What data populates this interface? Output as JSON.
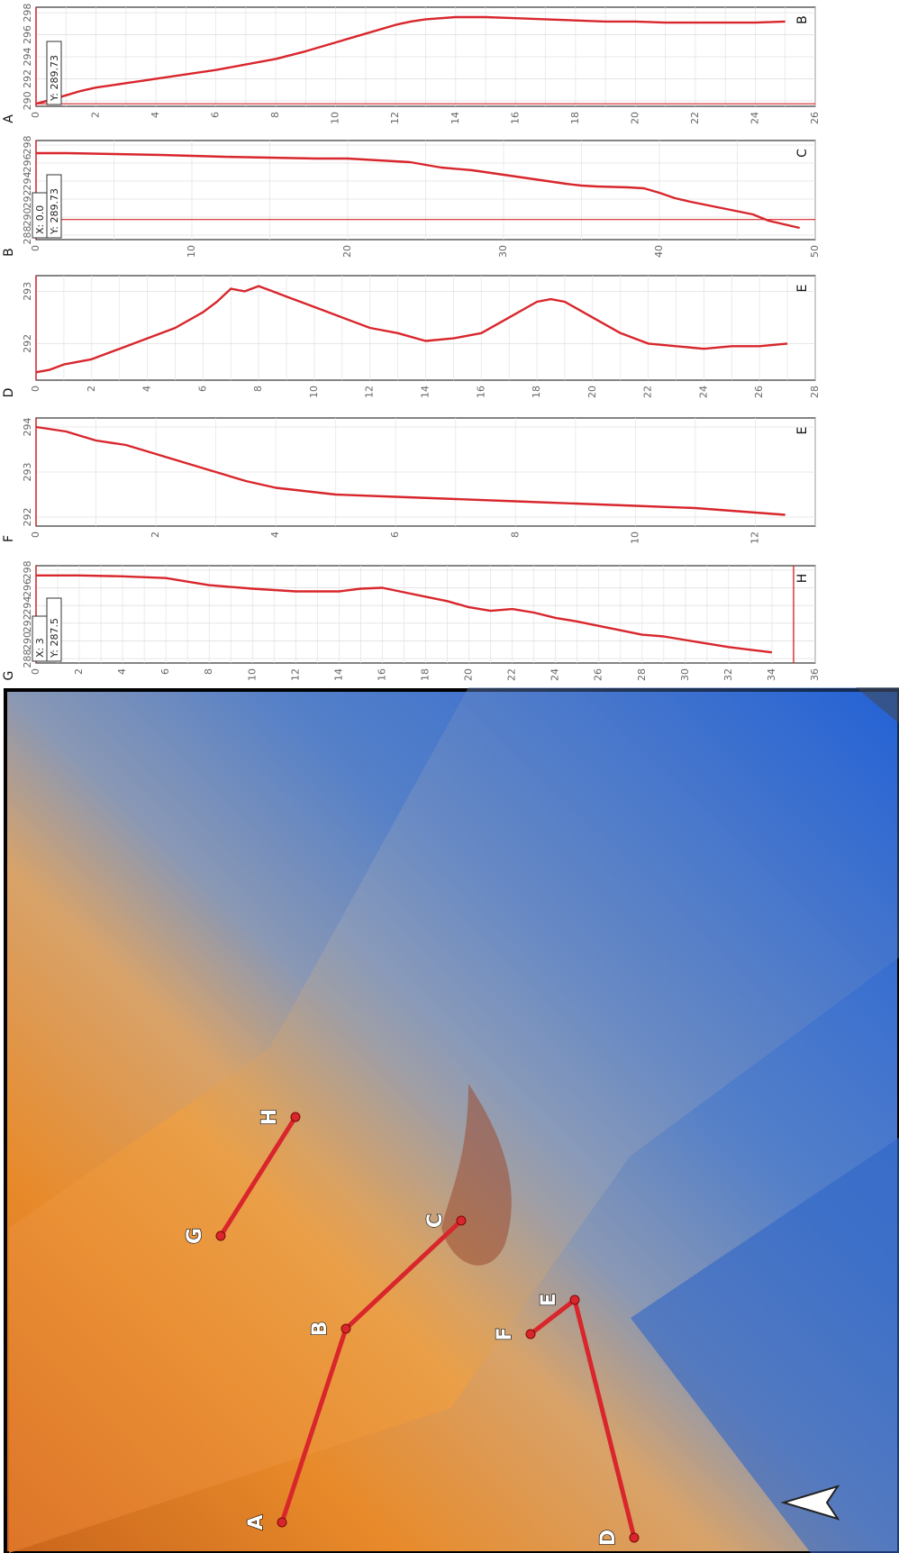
{
  "map": {
    "colors": {
      "line": "#d8262c",
      "highland": "#e88a2a",
      "lowland": "#2e6fd6"
    },
    "north_arrow_icon": "north-arrow-icon",
    "points": [
      "A",
      "B",
      "C",
      "D",
      "E",
      "F",
      "G",
      "H"
    ],
    "profiles": [
      {
        "name": "A-B-C",
        "points": [
          "A",
          "B",
          "C"
        ]
      },
      {
        "name": "D-E-F",
        "points": [
          "D",
          "E",
          "F"
        ]
      },
      {
        "name": "G-H",
        "points": [
          "G",
          "H"
        ]
      }
    ]
  },
  "chart_data": [
    {
      "type": "line",
      "start_label": "A",
      "end_label": "B",
      "xticks": [
        "0",
        "2",
        "4",
        "6",
        "8",
        "10",
        "12",
        "14",
        "16",
        "18",
        "20",
        "22",
        "24",
        "26"
      ],
      "yticks": [
        "290",
        "292",
        "294",
        "296",
        "298"
      ],
      "xlim": [
        0,
        26
      ],
      "ylim": [
        289.5,
        298.5
      ],
      "cursor_label": "Y: 289.73",
      "series": [
        {
          "x": [
            0,
            0.5,
            1,
            1.5,
            2,
            2.5,
            3,
            3.5,
            4,
            5,
            6,
            7,
            8,
            9,
            10,
            11,
            12,
            12.5,
            13,
            14,
            15,
            16,
            17,
            18,
            19,
            20,
            21,
            22,
            23,
            24,
            25
          ],
          "y": [
            289.73,
            290.1,
            290.5,
            290.9,
            291.2,
            291.4,
            291.6,
            291.8,
            292.0,
            292.4,
            292.8,
            293.3,
            293.8,
            294.5,
            295.3,
            296.1,
            296.9,
            297.2,
            297.4,
            297.6,
            297.6,
            297.5,
            297.4,
            297.3,
            297.2,
            297.2,
            297.1,
            297.1,
            297.1,
            297.1,
            297.2
          ]
        }
      ],
      "legend": "none",
      "grid": true
    },
    {
      "type": "line",
      "start_label": "B",
      "end_label": "C",
      "xticks": [
        "0",
        "10",
        "20",
        "30",
        "40",
        "50"
      ],
      "yticks": [
        "288",
        "290",
        "292",
        "294",
        "296",
        "298"
      ],
      "xlim": [
        0,
        50
      ],
      "ylim": [
        287.5,
        298.5
      ],
      "cursor_label": "Y: 289.73",
      "cursor_label_2": "X: 0.0",
      "series": [
        {
          "x": [
            0,
            2,
            5,
            8,
            10,
            12,
            15,
            18,
            20,
            22,
            24,
            25,
            26,
            28,
            30,
            32,
            34,
            35,
            36,
            38,
            39,
            40,
            41,
            42,
            44,
            46,
            47,
            48,
            49
          ],
          "y": [
            297.1,
            297.1,
            297.0,
            296.9,
            296.8,
            296.7,
            296.6,
            296.5,
            296.5,
            296.3,
            296.1,
            295.8,
            295.5,
            295.2,
            294.7,
            294.2,
            293.7,
            293.5,
            293.4,
            293.3,
            293.2,
            292.7,
            292.1,
            291.7,
            291.0,
            290.3,
            289.6,
            289.2,
            288.8
          ]
        }
      ],
      "legend": "none",
      "grid": true
    },
    {
      "type": "line",
      "start_label": "D",
      "end_label": "E",
      "xticks": [
        "0",
        "2",
        "4",
        "6",
        "8",
        "10",
        "12",
        "14",
        "16",
        "18",
        "20",
        "22",
        "24",
        "26",
        "28"
      ],
      "yticks": [
        "292",
        "293"
      ],
      "xlim": [
        0,
        28
      ],
      "ylim": [
        291.3,
        293.3
      ],
      "series": [
        {
          "x": [
            0,
            0.5,
            1,
            2,
            3,
            4,
            5,
            6,
            6.5,
            7,
            7.5,
            8,
            8.5,
            9,
            10,
            11,
            12,
            13,
            14,
            15,
            16,
            17,
            18,
            18.5,
            19,
            20,
            21,
            22,
            23,
            24,
            25,
            26,
            27
          ],
          "y": [
            291.45,
            291.5,
            291.6,
            291.7,
            291.9,
            292.1,
            292.3,
            292.6,
            292.8,
            293.05,
            293.0,
            293.1,
            293.0,
            292.9,
            292.7,
            292.5,
            292.3,
            292.2,
            292.05,
            292.1,
            292.2,
            292.5,
            292.8,
            292.85,
            292.8,
            292.5,
            292.2,
            292.0,
            291.95,
            291.9,
            291.95,
            291.95,
            292.0
          ]
        }
      ],
      "legend": "none",
      "grid": true
    },
    {
      "type": "line",
      "start_label": "F",
      "end_label": "E",
      "xticks": [
        "0",
        "2",
        "4",
        "6",
        "8",
        "10",
        "12"
      ],
      "yticks": [
        "292",
        "293",
        "294"
      ],
      "xlim": [
        0,
        13
      ],
      "ylim": [
        291.8,
        294.2
      ],
      "series": [
        {
          "x": [
            0,
            0.5,
            1,
            1.5,
            2,
            2.5,
            3,
            3.5,
            4,
            5,
            6,
            7,
            8,
            9,
            10,
            11,
            12,
            12.5
          ],
          "y": [
            294.0,
            293.9,
            293.7,
            293.6,
            293.4,
            293.2,
            293.0,
            292.8,
            292.65,
            292.5,
            292.45,
            292.4,
            292.35,
            292.3,
            292.25,
            292.2,
            292.1,
            292.05
          ]
        }
      ],
      "legend": "none",
      "grid": true
    },
    {
      "type": "line",
      "start_label": "G",
      "end_label": "H",
      "xticks": [
        "0",
        "2",
        "4",
        "6",
        "8",
        "10",
        "12",
        "14",
        "16",
        "18",
        "20",
        "22",
        "24",
        "26",
        "28",
        "30",
        "32",
        "34",
        "36"
      ],
      "yticks": [
        "288",
        "290",
        "292",
        "294",
        "296",
        "298"
      ],
      "xlim": [
        0,
        36
      ],
      "ylim": [
        287.5,
        298.5
      ],
      "cursor_label": "Y: 287.5",
      "cursor_label_2": "X: 3",
      "series": [
        {
          "x": [
            0,
            2,
            4,
            6,
            7,
            8,
            9,
            10,
            12,
            14,
            15,
            16,
            17,
            18,
            19,
            20,
            21,
            22,
            23,
            24,
            25,
            26,
            27,
            28,
            29,
            30,
            31,
            32,
            33,
            34
          ],
          "y": [
            297.4,
            297.4,
            297.3,
            297.1,
            296.7,
            296.3,
            296.1,
            295.9,
            295.6,
            295.6,
            295.9,
            296.0,
            295.5,
            295.0,
            294.5,
            293.8,
            293.4,
            293.6,
            293.2,
            292.6,
            292.2,
            291.7,
            291.2,
            290.7,
            290.5,
            290.1,
            289.7,
            289.3,
            289.0,
            288.7
          ]
        }
      ],
      "legend": "none",
      "grid": true
    }
  ]
}
